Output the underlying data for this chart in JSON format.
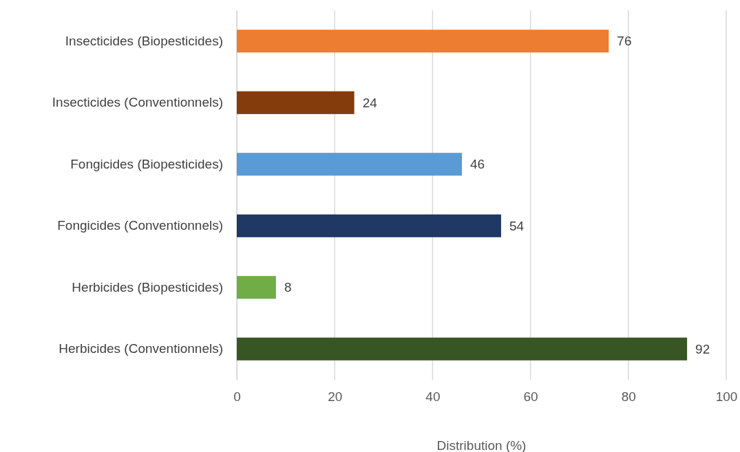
{
  "chart_data": {
    "type": "bar",
    "orientation": "horizontal",
    "xlabel": "Distribution (%)",
    "categories": [
      "Insecticides (Biopesticides)",
      "Insecticides (Conventionnels)",
      "Fongicides (Biopesticides)",
      "Fongicides (Conventionnels)",
      "Herbicides (Biopesticides)",
      "Herbicides (Conventionnels)"
    ],
    "values": [
      76,
      24,
      46,
      54,
      8,
      92
    ],
    "colors": [
      "#ed7d31",
      "#843c0c",
      "#5b9bd5",
      "#1f3864",
      "#70ad47",
      "#375623"
    ],
    "xlim": [
      0,
      100
    ],
    "xticks": [
      0,
      20,
      40,
      60,
      80,
      100
    ],
    "grid": "x",
    "data_labels": true
  }
}
